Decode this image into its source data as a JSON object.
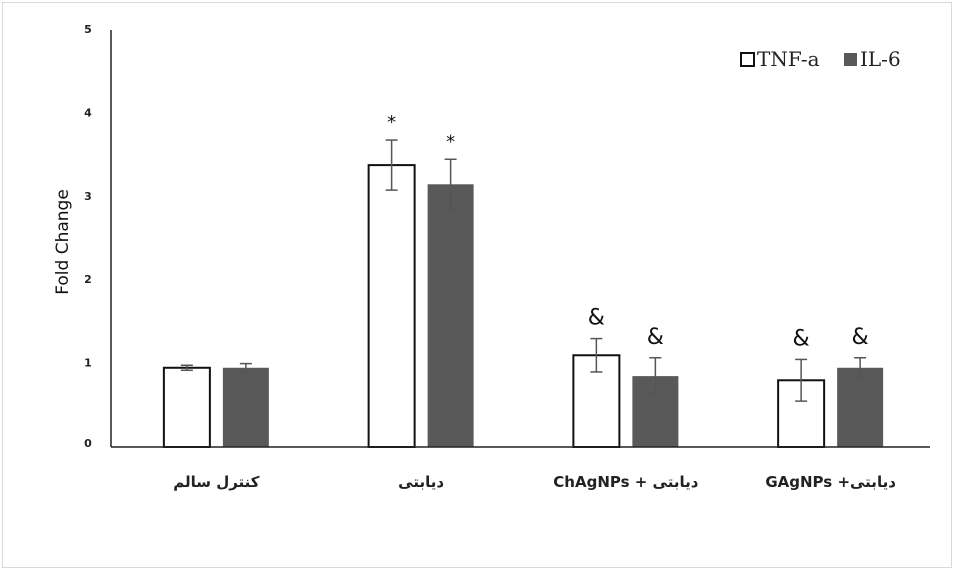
{
  "chart_data": {
    "type": "bar",
    "ylabel": "Fold Change",
    "xlabel": "",
    "ylim": [
      0,
      5
    ],
    "yticks": [
      "0",
      "1",
      "2",
      "3",
      "4",
      "5"
    ],
    "categories": [
      "کنترل سالم",
      "دیابتی",
      "دیابتی + ChAgNPs",
      "دیابتی+ GAgNPs"
    ],
    "series": [
      {
        "name": "TNF-a",
        "color": "#ffffff",
        "values": [
          0.95,
          3.38,
          1.1,
          0.8
        ],
        "errors": [
          0.03,
          0.3,
          0.2,
          0.25
        ],
        "annotations": [
          "",
          "*",
          "&",
          "&"
        ]
      },
      {
        "name": "IL-6",
        "color": "#595959",
        "values": [
          0.95,
          3.15,
          0.85,
          0.95
        ],
        "errors": [
          0.05,
          0.3,
          0.22,
          0.12
        ],
        "annotations": [
          "",
          "*",
          "&",
          "&"
        ]
      }
    ],
    "legend_position": "top-right",
    "grid": false
  }
}
